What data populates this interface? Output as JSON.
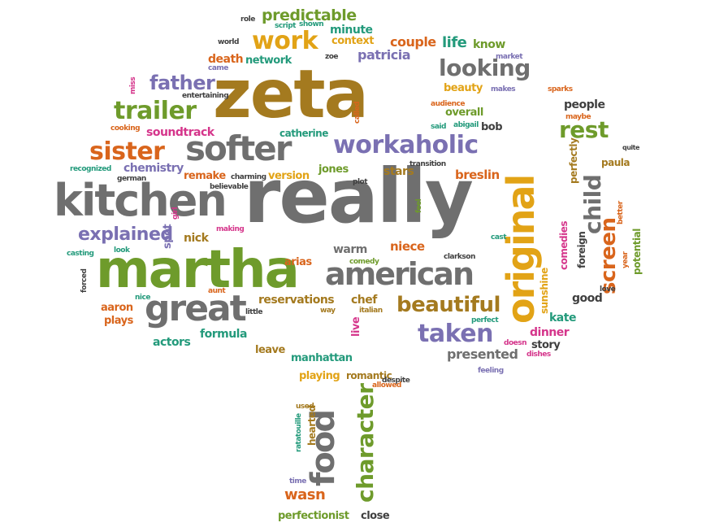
{
  "cloud": {
    "words": [
      "zeta",
      "really",
      "martha",
      "kitchen",
      "original",
      "softer",
      "american",
      "great",
      "workaholic",
      "trailer",
      "sister",
      "looking",
      "beautiful",
      "taken",
      "father",
      "work",
      "rest",
      "child",
      "screen",
      "food",
      "character",
      "explained",
      "predictable",
      "life",
      "know",
      "couple",
      "patricia",
      "minute",
      "context",
      "network",
      "death",
      "people",
      "soundtrack",
      "chemistry",
      "remake",
      "version",
      "jones",
      "breslin",
      "stars",
      "niece",
      "warm",
      "arias",
      "nick",
      "spot",
      "reservations",
      "chef",
      "aaron",
      "plays",
      "actors",
      "formula",
      "leave",
      "manhattan",
      "playing",
      "romantic",
      "presented",
      "dinner",
      "kate",
      "story",
      "good",
      "potential",
      "paula",
      "perfectly",
      "comedies",
      "sunshine",
      "foreign",
      "wasn",
      "perfectionist",
      "close",
      "hearted",
      "ratatouille",
      "used",
      "time",
      "beauty",
      "overall",
      "bob",
      "abigail",
      "catherine",
      "audience",
      "maybe",
      "quite",
      "cast",
      "clarkson",
      "despite",
      "allowed",
      "feeling",
      "dishes",
      "doesn",
      "perfect",
      "italian",
      "way",
      "little",
      "aunt",
      "nice",
      "forced",
      "casting",
      "look",
      "making",
      "girl",
      "believable",
      "charming",
      "german",
      "recognized",
      "cooking",
      "miss",
      "entertaining",
      "came",
      "world",
      "role",
      "script",
      "shown",
      "zoe",
      "market",
      "makes",
      "sparks",
      "called",
      "said",
      "plot",
      "transition",
      "feel",
      "comedy",
      "live",
      "love",
      "year",
      "better"
    ]
  },
  "colors": {
    "gray": "#6f6f6f",
    "brown": "#a47a1f",
    "gold": "#e2a316",
    "green": "#6e9b2b",
    "orange": "#d9651c",
    "purple": "#7a70b2",
    "pink": "#d5358b",
    "teal": "#239a7b"
  }
}
